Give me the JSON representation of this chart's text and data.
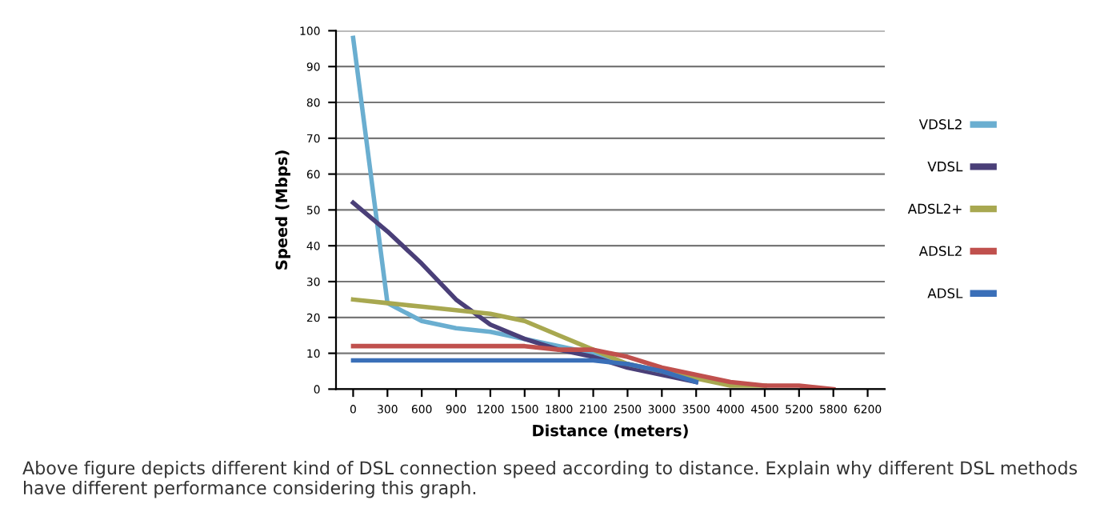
{
  "chart_data": {
    "type": "line",
    "xlabel": "Distance (meters)",
    "ylabel": "Speed (Mbps)",
    "categories": [
      "0",
      "300",
      "600",
      "900",
      "1200",
      "1500",
      "1800",
      "2100",
      "2500",
      "3000",
      "3500",
      "4000",
      "4500",
      "5200",
      "5800",
      "6200"
    ],
    "series": [
      {
        "name": "VDSL2",
        "color": "#6aaed0",
        "values": [
          98,
          24,
          19,
          17,
          16,
          14,
          12,
          10,
          7,
          5,
          3,
          null,
          null,
          null,
          null,
          null
        ]
      },
      {
        "name": "VDSL",
        "color": "#4a3f78",
        "values": [
          52,
          44,
          35,
          25,
          18,
          14,
          11,
          9,
          6,
          4,
          2,
          null,
          null,
          null,
          null,
          null
        ]
      },
      {
        "name": "ADSL2+",
        "color": "#a8a850",
        "values": [
          25,
          24,
          23,
          22,
          21,
          19,
          15,
          11,
          7,
          5,
          3,
          1,
          1,
          null,
          null,
          null
        ]
      },
      {
        "name": "ADSL2",
        "color": "#c0504d",
        "values": [
          12,
          12,
          12,
          12,
          12,
          12,
          11,
          11,
          9,
          6,
          4,
          2,
          1,
          1,
          0,
          null
        ]
      },
      {
        "name": "ADSL",
        "color": "#3a6fb8",
        "values": [
          8,
          8,
          8,
          8,
          8,
          8,
          8,
          8,
          7,
          5,
          2,
          null,
          null,
          null,
          null,
          null
        ]
      }
    ],
    "ylim": [
      0,
      100
    ],
    "yticks": [
      0,
      10,
      20,
      30,
      40,
      50,
      60,
      70,
      80,
      90,
      100
    ],
    "grid": "y",
    "legend": "right",
    "annotations": [
      "Above figure depicts different kind of DSL connection speed according to distance. Explain why different DSL methods have different performance considering this graph."
    ]
  }
}
